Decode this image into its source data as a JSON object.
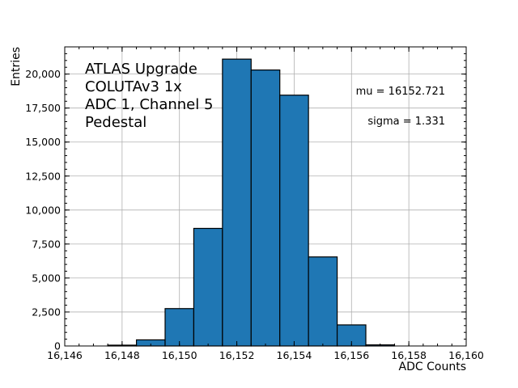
{
  "chart_data": {
    "type": "bar",
    "xlabel": "ADC Counts",
    "ylabel": "Entries",
    "xlim": [
      16146,
      16160
    ],
    "ylim": [
      0,
      22000
    ],
    "x_ticks": [
      16146,
      16148,
      16150,
      16152,
      16154,
      16156,
      16158,
      16160
    ],
    "x_tick_labels": [
      "16,146",
      "16,148",
      "16,150",
      "16,152",
      "16,154",
      "16,156",
      "16,158",
      "16,160"
    ],
    "y_ticks": [
      0,
      2500,
      5000,
      7500,
      10000,
      12500,
      15000,
      17500,
      20000
    ],
    "y_tick_labels": [
      "0",
      "2,500",
      "5,000",
      "7,500",
      "10,000",
      "12,500",
      "15,000",
      "17,500",
      "20,000"
    ],
    "grid": true,
    "bar_color": "#1f77b4",
    "bins": [
      {
        "start": 16147.5,
        "end": 16148.5,
        "value": 60
      },
      {
        "start": 16148.5,
        "end": 16149.5,
        "value": 450
      },
      {
        "start": 16149.5,
        "end": 16150.5,
        "value": 2750
      },
      {
        "start": 16150.5,
        "end": 16151.5,
        "value": 8650
      },
      {
        "start": 16151.5,
        "end": 16152.5,
        "value": 21100
      },
      {
        "start": 16152.5,
        "end": 16153.5,
        "value": 20300
      },
      {
        "start": 16153.5,
        "end": 16154.5,
        "value": 18450
      },
      {
        "start": 16154.5,
        "end": 16155.5,
        "value": 6550
      },
      {
        "start": 16155.5,
        "end": 16156.5,
        "value": 1550
      },
      {
        "start": 16156.5,
        "end": 16157.5,
        "value": 80
      }
    ],
    "annotation_lines": [
      "ATLAS Upgrade",
      "COLUTAv3 1x",
      "ADC 1, Channel 5",
      "Pedestal"
    ],
    "stats": {
      "mu": "mu = 16152.721",
      "sigma": "sigma = 1.331"
    }
  }
}
